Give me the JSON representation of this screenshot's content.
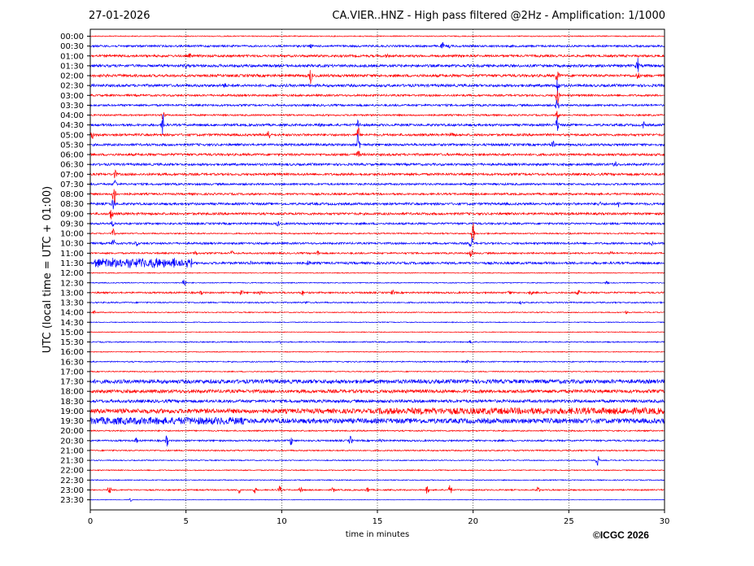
{
  "header": {
    "date": "27-01-2026",
    "title": "CA.VIER..HNZ - High pass filtered @2Hz - Amplification: 1/1000"
  },
  "footer": {
    "copyright": "©ICGC 2026"
  },
  "colors": {
    "trace_a": "#ff0000",
    "trace_b": "#0000ff",
    "grid": "#000000",
    "axis": "#000000"
  },
  "chart_data": {
    "type": "line",
    "title": "CA.VIER..HNZ - High pass filtered @2Hz - Amplification: 1/1000",
    "xlabel": "time in minutes",
    "ylabel": "UTC (local time = UTC + 01:00)",
    "xlim": [
      0,
      30
    ],
    "xticks": [
      0,
      5,
      10,
      15,
      20,
      25,
      30
    ],
    "grid": "vertical dotted at x ticks",
    "rows": [
      {
        "label": "00:00",
        "noise": 0.6,
        "events": []
      },
      {
        "label": "00:30",
        "noise": 1.2,
        "events": [
          [
            11.5,
            2
          ],
          [
            18.4,
            4
          ],
          [
            18.8,
            2
          ]
        ]
      },
      {
        "label": "01:00",
        "noise": 1.4,
        "events": [
          [
            5.2,
            2
          ],
          [
            15.5,
            2
          ]
        ]
      },
      {
        "label": "01:30",
        "noise": 1.6,
        "events": [
          [
            28.6,
            9
          ],
          [
            5.0,
            2
          ]
        ]
      },
      {
        "label": "02:00",
        "noise": 1.6,
        "events": [
          [
            11.5,
            10
          ],
          [
            24.4,
            10
          ],
          [
            28.6,
            4
          ]
        ]
      },
      {
        "label": "02:30",
        "noise": 1.6,
        "events": [
          [
            7.0,
            3
          ],
          [
            24.4,
            14
          ]
        ]
      },
      {
        "label": "03:00",
        "noise": 1.2,
        "events": [
          [
            24.4,
            12
          ]
        ]
      },
      {
        "label": "03:30",
        "noise": 1.2,
        "events": [
          [
            24.4,
            8
          ]
        ]
      },
      {
        "label": "04:00",
        "noise": 1.0,
        "events": [
          [
            3.8,
            8
          ],
          [
            24.4,
            6
          ]
        ]
      },
      {
        "label": "04:30",
        "noise": 1.4,
        "events": [
          [
            3.8,
            14
          ],
          [
            14.0,
            8
          ],
          [
            24.4,
            10
          ],
          [
            28.9,
            4
          ],
          [
            12.0,
            2
          ]
        ]
      },
      {
        "label": "05:00",
        "noise": 1.4,
        "events": [
          [
            9.3,
            8
          ],
          [
            14.0,
            10
          ],
          [
            18.9,
            5
          ],
          [
            0.1,
            6
          ]
        ]
      },
      {
        "label": "05:30",
        "noise": 1.4,
        "events": [
          [
            14.0,
            16
          ],
          [
            24.2,
            5
          ]
        ]
      },
      {
        "label": "06:00",
        "noise": 1.4,
        "events": [
          [
            14.0,
            6
          ]
        ]
      },
      {
        "label": "06:30",
        "noise": 1.4,
        "events": [
          [
            27.4,
            5
          ]
        ]
      },
      {
        "label": "07:00",
        "noise": 1.4,
        "events": [
          [
            1.3,
            5
          ]
        ]
      },
      {
        "label": "07:30",
        "noise": 1.2,
        "events": [
          [
            1.3,
            6
          ]
        ]
      },
      {
        "label": "08:00",
        "noise": 1.2,
        "events": [
          [
            1.25,
            16
          ]
        ]
      },
      {
        "label": "08:30",
        "noise": 1.4,
        "events": [
          [
            1.2,
            8
          ],
          [
            26.6,
            3
          ],
          [
            27.6,
            3
          ]
        ]
      },
      {
        "label": "09:00",
        "noise": 1.4,
        "events": [
          [
            1.1,
            8
          ]
        ]
      },
      {
        "label": "09:30",
        "noise": 1.2,
        "events": [
          [
            1.2,
            5
          ],
          [
            9.8,
            3
          ]
        ]
      },
      {
        "label": "10:00",
        "noise": 0.8,
        "events": [
          [
            1.2,
            5
          ],
          [
            20.0,
            16
          ]
        ]
      },
      {
        "label": "10:30",
        "noise": 1.2,
        "events": [
          [
            1.2,
            6
          ],
          [
            19.9,
            10
          ],
          [
            29.3,
            3
          ],
          [
            2.4,
            3
          ]
        ]
      },
      {
        "label": "11:00",
        "noise": 1.0,
        "events": [
          [
            5.5,
            3
          ],
          [
            7.4,
            3
          ],
          [
            11.9,
            3
          ],
          [
            19.9,
            6
          ],
          [
            27.2,
            2
          ]
        ]
      },
      {
        "label": "11:30",
        "noise": 1.4,
        "events": [
          [
            0.4,
            6
          ],
          [
            1.5,
            6
          ],
          [
            2.6,
            7
          ],
          [
            3.2,
            5
          ],
          [
            4.3,
            5
          ],
          [
            8.4,
            2
          ],
          [
            11.4,
            3
          ]
        ]
      },
      {
        "label": "12:00",
        "noise": 0.5,
        "events": []
      },
      {
        "label": "12:30",
        "noise": 0.6,
        "events": [
          [
            4.9,
            7
          ],
          [
            27.0,
            2
          ]
        ]
      },
      {
        "label": "13:00",
        "noise": 1.0,
        "events": [
          [
            5.8,
            2
          ],
          [
            7.9,
            4
          ],
          [
            8.9,
            3
          ],
          [
            11.1,
            3
          ],
          [
            15.8,
            3
          ],
          [
            21.9,
            3
          ],
          [
            23.0,
            3
          ],
          [
            25.5,
            3
          ]
        ]
      },
      {
        "label": "13:30",
        "noise": 0.8,
        "events": [
          [
            11.3,
            2
          ],
          [
            22.5,
            2
          ]
        ]
      },
      {
        "label": "14:00",
        "noise": 0.6,
        "events": [
          [
            0.2,
            2
          ],
          [
            13.8,
            2
          ],
          [
            28.0,
            2
          ]
        ]
      },
      {
        "label": "14:30",
        "noise": 0.5,
        "events": []
      },
      {
        "label": "15:00",
        "noise": 0.5,
        "events": []
      },
      {
        "label": "15:30",
        "noise": 0.7,
        "events": [
          [
            19.9,
            3
          ],
          [
            9.9,
            2
          ]
        ]
      },
      {
        "label": "16:00",
        "noise": 0.5,
        "events": []
      },
      {
        "label": "16:30",
        "noise": 0.7,
        "events": [
          [
            19.7,
            2
          ]
        ]
      },
      {
        "label": "17:00",
        "noise": 0.6,
        "events": []
      },
      {
        "label": "17:30",
        "noise": 2.4,
        "events": []
      },
      {
        "label": "18:00",
        "noise": 2.0,
        "events": []
      },
      {
        "label": "18:30",
        "noise": 1.8,
        "events": []
      },
      {
        "label": "19:00",
        "noise": 2.8,
        "events": []
      },
      {
        "label": "19:30",
        "noise": 3.0,
        "events": []
      },
      {
        "label": "20:00",
        "noise": 0.8,
        "events": []
      },
      {
        "label": "20:30",
        "noise": 1.0,
        "events": [
          [
            4.0,
            7
          ],
          [
            10.5,
            6
          ],
          [
            13.6,
            6
          ],
          [
            2.4,
            3
          ],
          [
            15.2,
            2
          ]
        ]
      },
      {
        "label": "21:00",
        "noise": 0.8,
        "events": []
      },
      {
        "label": "21:30",
        "noise": 0.6,
        "events": [
          [
            26.5,
            8
          ]
        ]
      },
      {
        "label": "22:00",
        "noise": 0.6,
        "events": []
      },
      {
        "label": "22:30",
        "noise": 0.6,
        "events": []
      },
      {
        "label": "23:00",
        "noise": 0.8,
        "events": [
          [
            1.0,
            5
          ],
          [
            7.8,
            5
          ],
          [
            8.6,
            4
          ],
          [
            9.9,
            5
          ],
          [
            11.0,
            4
          ],
          [
            12.7,
            4
          ],
          [
            14.5,
            4
          ],
          [
            17.6,
            5
          ],
          [
            18.8,
            7
          ],
          [
            23.4,
            5
          ]
        ]
      },
      {
        "label": "23:30",
        "noise": 0.3,
        "events": [
          [
            2.1,
            2
          ]
        ]
      }
    ]
  }
}
